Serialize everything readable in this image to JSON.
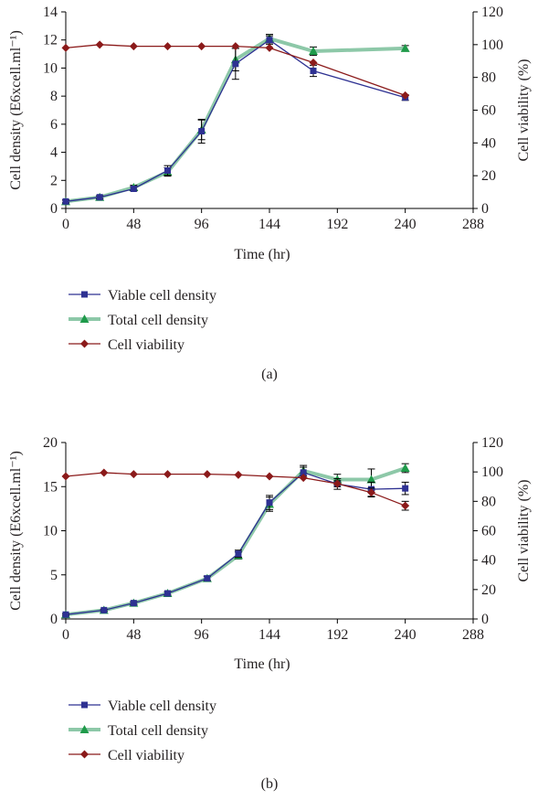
{
  "chart_data": [
    {
      "panel_label": "(a)",
      "type": "line",
      "xlabel": "Time (hr)",
      "ylabel": "Cell density (E6xcell.ml⁻¹)",
      "y2label": "Cell viability (%)",
      "xlim": [
        0,
        288
      ],
      "xticks": [
        "0",
        "48",
        "96",
        "144",
        "192",
        "240",
        "288"
      ],
      "ylim": [
        0,
        14
      ],
      "yticks": [
        "0",
        "2",
        "4",
        "6",
        "8",
        "10",
        "12",
        "14"
      ],
      "y2lim": [
        0,
        120
      ],
      "y2ticks": [
        "0",
        "20",
        "40",
        "60",
        "80",
        "100",
        "120"
      ],
      "series": [
        {
          "name": "Viable cell density",
          "axis": "left",
          "color": "#2e3192",
          "marker": "square",
          "x": [
            0,
            24,
            48,
            72,
            96,
            120,
            144,
            175,
            240
          ],
          "y": [
            0.5,
            0.8,
            1.4,
            2.7,
            5.5,
            10.3,
            12.0,
            9.8,
            7.9
          ],
          "err": [
            0.1,
            0.1,
            0.15,
            0.35,
            0.85,
            1.1,
            0.3,
            0.4,
            0.2
          ]
        },
        {
          "name": "Total cell density",
          "axis": "left",
          "color": "#8dc8a8",
          "marker": "triangle",
          "x": [
            0,
            24,
            48,
            72,
            96,
            120,
            144,
            175,
            240
          ],
          "y": [
            0.5,
            0.8,
            1.5,
            2.6,
            5.6,
            10.6,
            12.1,
            11.2,
            11.4
          ],
          "err": [
            0.1,
            0.1,
            0.15,
            0.3,
            0.7,
            0.8,
            0.3,
            0.3,
            0.2
          ]
        },
        {
          "name": "Cell viability",
          "axis": "right",
          "color": "#8b1a1a",
          "marker": "diamond",
          "x": [
            0,
            24,
            48,
            72,
            96,
            120,
            144,
            175,
            240
          ],
          "y": [
            98,
            100,
            99,
            99,
            99,
            99,
            98,
            89,
            69
          ],
          "err": [
            0,
            0,
            0,
            0,
            0,
            0,
            0,
            0,
            0
          ]
        }
      ],
      "legend": [
        "Viable cell density",
        "Total cell density",
        "Cell viability"
      ]
    },
    {
      "panel_label": "(b)",
      "type": "line",
      "xlabel": "Time (hr)",
      "ylabel": "Cell density (E6xcell.ml⁻¹)",
      "y2label": "Cell viability (%)",
      "xlim": [
        0,
        288
      ],
      "xticks": [
        "0",
        "48",
        "96",
        "144",
        "192",
        "240",
        "288"
      ],
      "ylim": [
        0,
        20
      ],
      "yticks": [
        "0",
        "5",
        "10",
        "15",
        "20"
      ],
      "y2lim": [
        0,
        120
      ],
      "y2ticks": [
        "0",
        "20",
        "40",
        "60",
        "80",
        "100",
        "120"
      ],
      "series": [
        {
          "name": "Viable cell density",
          "axis": "left",
          "color": "#2e3192",
          "marker": "square",
          "x": [
            0,
            27,
            48,
            72,
            100,
            122,
            144,
            168,
            192,
            216,
            240
          ],
          "y": [
            0.5,
            1.0,
            1.8,
            2.9,
            4.6,
            7.4,
            13.2,
            16.6,
            15.3,
            14.7,
            14.8
          ],
          "err": [
            0.1,
            0.1,
            0.15,
            0.2,
            0.25,
            0.4,
            0.8,
            0.6,
            0.6,
            0.8,
            0.7
          ]
        },
        {
          "name": "Total cell density",
          "axis": "left",
          "color": "#8dc8a8",
          "marker": "triangle",
          "x": [
            0,
            27,
            48,
            72,
            100,
            122,
            144,
            168,
            192,
            216,
            240
          ],
          "y": [
            0.5,
            1.0,
            1.8,
            2.9,
            4.6,
            7.2,
            13.0,
            16.8,
            15.8,
            15.8,
            17.1
          ],
          "err": [
            0.1,
            0.1,
            0.15,
            0.2,
            0.25,
            0.4,
            0.8,
            0.6,
            0.6,
            1.2,
            0.5
          ]
        },
        {
          "name": "Cell viability",
          "axis": "right",
          "color": "#8b1a1a",
          "marker": "diamond",
          "x": [
            0,
            27,
            48,
            72,
            100,
            122,
            144,
            168,
            192,
            216,
            240
          ],
          "y": [
            97,
            99.5,
            98.5,
            98.5,
            98.5,
            98,
            97,
            96,
            92,
            86,
            77
          ],
          "err": [
            0,
            0,
            0,
            0,
            0,
            0,
            0,
            0,
            2,
            3,
            3
          ]
        }
      ],
      "legend": [
        "Viable cell density",
        "Total cell density",
        "Cell viability"
      ]
    }
  ]
}
